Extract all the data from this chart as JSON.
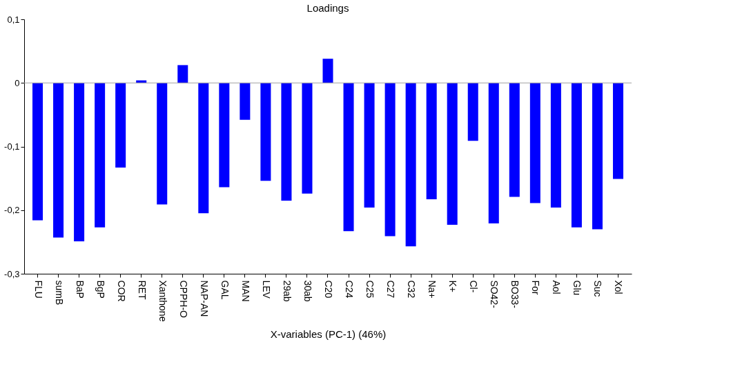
{
  "chart_data": {
    "type": "bar",
    "title": "Loadings",
    "xlabel": "X-variables (PC-1) (46%)",
    "categories": [
      "FLU",
      "sumB",
      "BaP",
      "BgP",
      "COR",
      "RET",
      "Xanthone",
      "CPPH-O",
      "NAP-AN",
      "GAL",
      "MAN",
      "LEV",
      "29ab",
      "30ab",
      "C20",
      "C24",
      "C25",
      "C27",
      "C32",
      "Na+",
      "K+",
      "Cl-",
      "SO42-",
      "BO33-",
      "For",
      "Aol",
      "Glu",
      "Suc",
      "Xol"
    ],
    "values": [
      -0.216,
      -0.243,
      -0.249,
      -0.227,
      -0.133,
      0.004,
      -0.191,
      0.028,
      -0.205,
      -0.164,
      -0.058,
      -0.154,
      -0.185,
      -0.174,
      0.038,
      -0.233,
      -0.196,
      -0.241,
      -0.257,
      -0.183,
      -0.223,
      -0.091,
      -0.221,
      -0.179,
      -0.189,
      -0.196,
      -0.227,
      -0.23,
      -0.151
    ],
    "color": "#0000ff",
    "ylim": [
      -0.3,
      0.1
    ],
    "yticks": [
      {
        "value": -0.3,
        "label": "-0,3"
      },
      {
        "value": -0.2,
        "label": "-0,2"
      },
      {
        "value": -0.1,
        "label": "-0,1"
      },
      0,
      {
        "value": 0.1,
        "label": "0,1"
      }
    ],
    "ref_lines": [
      {
        "axis": "y",
        "value": 0,
        "color": "#a0a0a0"
      }
    ],
    "grid": false
  }
}
